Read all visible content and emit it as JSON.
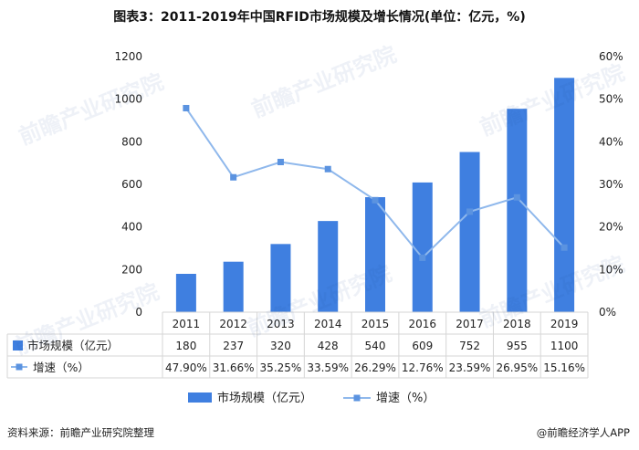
{
  "title": "图表3：2011-2019年中国RFID市场规模及增长情况(单位：亿元，%)",
  "source": "资料来源：前瞻产业研究院整理",
  "brand": "@前瞻经济学人APP",
  "watermark": "前瞻产业研究院",
  "colors": {
    "bar": "#3f7fe0",
    "line": "#8fb8ec",
    "marker": "#5b93e0",
    "grid": "#d6d6d6"
  },
  "chart_data": {
    "type": "bar",
    "categories": [
      "2011",
      "2012",
      "2013",
      "2014",
      "2015",
      "2016",
      "2017",
      "2018",
      "2019"
    ],
    "series": [
      {
        "name": "市场规模（亿元）",
        "type": "bar",
        "axis": "left",
        "values": [
          180,
          237,
          320,
          428,
          540,
          609,
          752,
          955,
          1100
        ],
        "labels": [
          "180",
          "237",
          "320",
          "428",
          "540",
          "609",
          "752",
          "955",
          "1100"
        ]
      },
      {
        "name": "增速（%）",
        "type": "line",
        "axis": "right",
        "values": [
          47.9,
          31.66,
          35.25,
          33.59,
          26.29,
          12.76,
          23.59,
          26.95,
          15.16
        ],
        "labels": [
          "47.90%",
          "31.66%",
          "35.25%",
          "33.59%",
          "26.29%",
          "12.76%",
          "23.59%",
          "26.95%",
          "15.16%"
        ]
      }
    ],
    "y_left": {
      "range": [
        0,
        1200
      ],
      "ticks": [
        "0",
        "200",
        "400",
        "600",
        "800",
        "1000",
        "1200"
      ]
    },
    "y_right": {
      "range": [
        0,
        60
      ],
      "ticks": [
        "0%",
        "10%",
        "20%",
        "30%",
        "40%",
        "50%",
        "60%"
      ]
    },
    "data_table": true,
    "legend": "bottom"
  }
}
